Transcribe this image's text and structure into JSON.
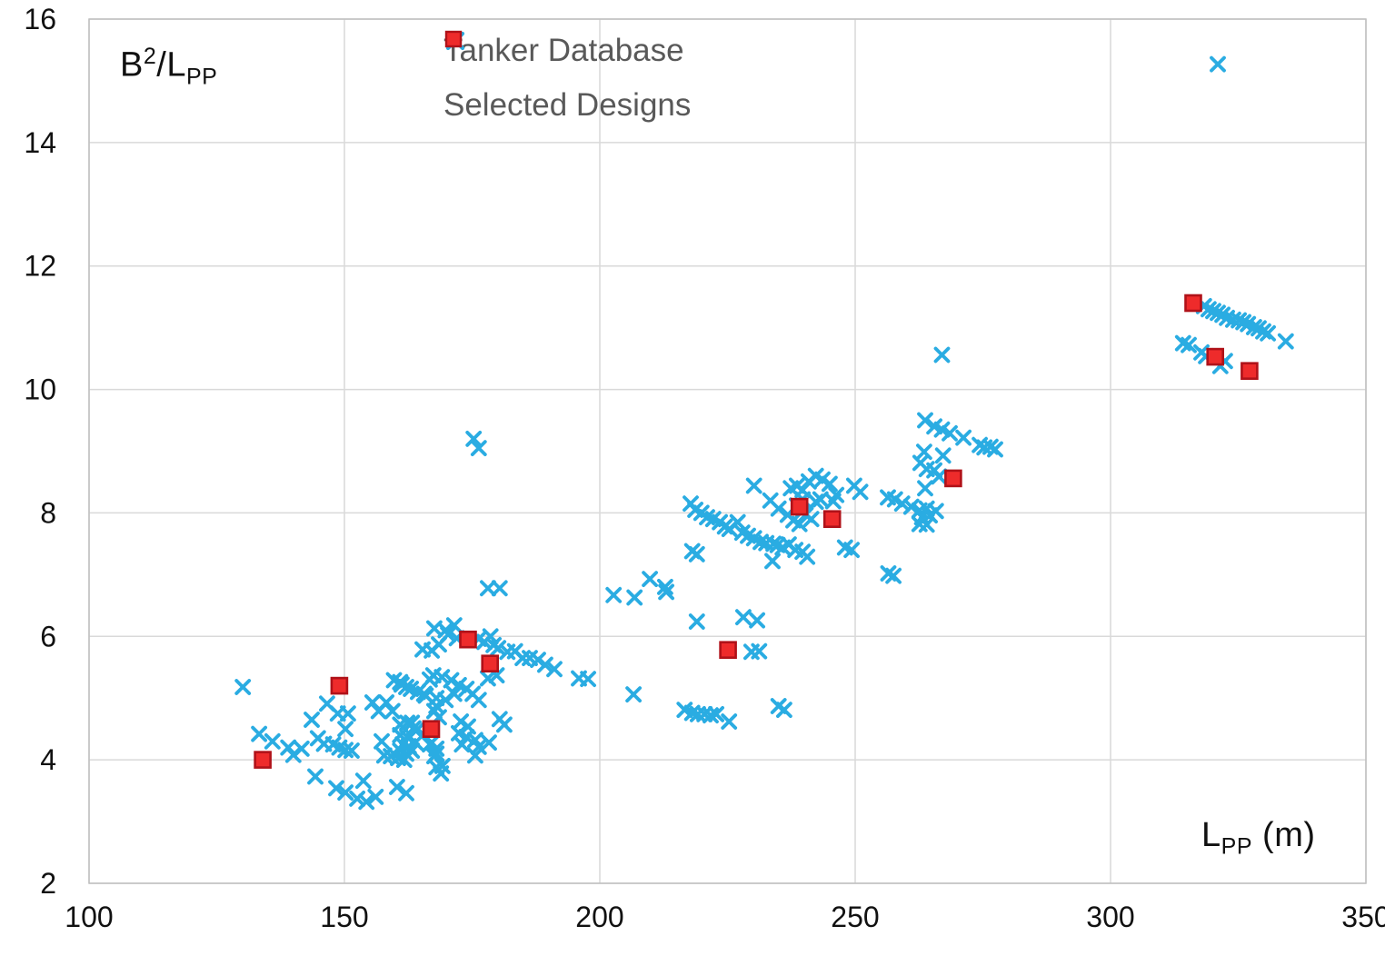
{
  "chart_data": {
    "type": "scatter",
    "title": "",
    "xlabel": "Lpp (m)",
    "ylabel": "B2/Lpp",
    "xlim": [
      100,
      350
    ],
    "ylim": [
      2,
      16
    ],
    "x_ticks": [
      100,
      150,
      200,
      250,
      300,
      350
    ],
    "y_ticks": [
      2,
      4,
      6,
      8,
      10,
      12,
      14,
      16
    ],
    "grid": true,
    "legend_position": "top-center-inside",
    "colors": {
      "tanker": "#2aace2",
      "selected_fill": "#ee2b2b",
      "selected_border": "#b01219",
      "gridline": "#d9d9d9",
      "plot_border": "#bfbfbf",
      "legend_text": "#595959",
      "tick_text": "#111111"
    },
    "y_axis_title_parts": {
      "base": "B",
      "sup": "2",
      "slash": "/L",
      "sub": "PP"
    },
    "x_axis_title_parts": {
      "base": "L",
      "sub": "PP",
      "unit": " (m)"
    },
    "series": [
      {
        "name": "Tanker Database",
        "marker": "x",
        "color": "#2aace2",
        "points": [
          [
            130.1,
            5.18
          ],
          [
            133.3,
            4.42
          ],
          [
            135.9,
            4.3
          ],
          [
            139.0,
            4.2
          ],
          [
            140.0,
            4.08
          ],
          [
            141.6,
            4.18
          ],
          [
            143.6,
            4.65
          ],
          [
            144.8,
            4.35
          ],
          [
            144.3,
            3.73
          ],
          [
            146.0,
            4.26
          ],
          [
            146.6,
            4.91
          ],
          [
            147.8,
            4.25
          ],
          [
            148.7,
            4.75
          ],
          [
            149.0,
            4.2
          ],
          [
            150.2,
            4.5
          ],
          [
            150.2,
            4.16
          ],
          [
            150.7,
            4.75
          ],
          [
            151.4,
            4.15
          ],
          [
            148.4,
            3.54
          ],
          [
            150.2,
            3.47
          ],
          [
            152.5,
            3.37
          ],
          [
            154.3,
            3.32
          ],
          [
            156.1,
            3.4
          ],
          [
            153.7,
            3.66
          ],
          [
            155.5,
            4.93
          ],
          [
            156.7,
            4.79
          ],
          [
            158.2,
            4.93
          ],
          [
            159.4,
            4.79
          ],
          [
            157.3,
            4.3
          ],
          [
            157.8,
            4.07
          ],
          [
            160.9,
            5.26
          ],
          [
            162.1,
            5.18
          ],
          [
            160.3,
            3.56
          ],
          [
            162.1,
            3.46
          ],
          [
            159.7,
            5.29
          ],
          [
            161.2,
            5.22
          ],
          [
            163.0,
            5.15
          ],
          [
            164.4,
            5.1
          ],
          [
            165.9,
            5.04
          ],
          [
            160.9,
            4.57
          ],
          [
            162.3,
            4.6
          ],
          [
            163.5,
            4.51
          ],
          [
            160.9,
            4.4
          ],
          [
            162.3,
            4.37
          ],
          [
            161.4,
            4.25
          ],
          [
            162.6,
            4.22
          ],
          [
            160.9,
            4.15
          ],
          [
            162.1,
            4.1
          ],
          [
            163.2,
            4.15
          ],
          [
            160.5,
            4.03
          ],
          [
            161.7,
            4.0
          ],
          [
            159.1,
            4.06
          ],
          [
            163.9,
            4.28
          ],
          [
            163.2,
            4.6
          ],
          [
            164.4,
            4.5
          ],
          [
            165.6,
            5.07
          ],
          [
            166.7,
            5.3
          ],
          [
            167.4,
            5.37
          ],
          [
            169.1,
            5.34
          ],
          [
            170.9,
            5.29
          ],
          [
            172.4,
            5.21
          ],
          [
            168.0,
            5.0
          ],
          [
            169.8,
            4.97
          ],
          [
            171.5,
            5.07
          ],
          [
            173.9,
            5.15
          ],
          [
            175.1,
            5.07
          ],
          [
            176.3,
            4.97
          ],
          [
            178.1,
            5.32
          ],
          [
            179.8,
            5.37
          ],
          [
            167.6,
            4.79
          ],
          [
            168.5,
            4.69
          ],
          [
            167.1,
            4.28
          ],
          [
            168.0,
            4.18
          ],
          [
            167.6,
            4.06
          ],
          [
            168.0,
            3.88
          ],
          [
            168.9,
            3.78
          ],
          [
            168.0,
            4.87
          ],
          [
            166.7,
            4.25
          ],
          [
            168.0,
            4.1
          ],
          [
            169.2,
            3.9
          ],
          [
            172.8,
            4.62
          ],
          [
            174.2,
            4.54
          ],
          [
            172.4,
            4.43
          ],
          [
            173.9,
            4.37
          ],
          [
            173.0,
            4.25
          ],
          [
            175.6,
            4.32
          ],
          [
            176.3,
            4.21
          ],
          [
            178.3,
            4.28
          ],
          [
            175.6,
            4.07
          ],
          [
            180.4,
            4.66
          ],
          [
            181.3,
            4.57
          ],
          [
            167.6,
            6.13
          ],
          [
            169.8,
            6.1
          ],
          [
            171.5,
            6.18
          ],
          [
            170.3,
            6.03
          ],
          [
            168.5,
            5.87
          ],
          [
            172.0,
            5.97
          ],
          [
            176.3,
            5.96
          ],
          [
            177.4,
            5.91
          ],
          [
            178.6,
            6.0
          ],
          [
            179.2,
            5.86
          ],
          [
            180.1,
            5.81
          ],
          [
            165.3,
            5.79
          ],
          [
            167.1,
            5.77
          ],
          [
            181.9,
            5.75
          ],
          [
            183.4,
            5.76
          ],
          [
            184.9,
            5.65
          ],
          [
            186.3,
            5.65
          ],
          [
            187.9,
            5.62
          ],
          [
            189.3,
            5.54
          ],
          [
            191.1,
            5.47
          ],
          [
            195.9,
            5.32
          ],
          [
            197.7,
            5.31
          ],
          [
            178.1,
            6.78
          ],
          [
            180.4,
            6.78
          ],
          [
            175.3,
            9.2
          ],
          [
            176.3,
            9.05
          ],
          [
            202.7,
            6.67
          ],
          [
            206.8,
            6.63
          ],
          [
            213.0,
            6.72
          ],
          [
            209.8,
            6.93
          ],
          [
            212.8,
            6.8
          ],
          [
            206.6,
            5.06
          ],
          [
            216.6,
            4.81
          ],
          [
            218.1,
            4.76
          ],
          [
            219.2,
            4.74
          ],
          [
            220.5,
            4.74
          ],
          [
            221.7,
            4.72
          ],
          [
            222.8,
            4.74
          ],
          [
            225.3,
            4.62
          ],
          [
            235.0,
            4.87
          ],
          [
            236.1,
            4.81
          ],
          [
            219.0,
            6.24
          ],
          [
            228.1,
            6.31
          ],
          [
            230.8,
            6.26
          ],
          [
            229.7,
            5.75
          ],
          [
            231.2,
            5.76
          ],
          [
            217.8,
            8.15
          ],
          [
            218.7,
            8.05
          ],
          [
            219.9,
            8.0
          ],
          [
            221.0,
            7.93
          ],
          [
            222.2,
            7.9
          ],
          [
            223.5,
            7.85
          ],
          [
            224.5,
            7.78
          ],
          [
            225.4,
            7.74
          ],
          [
            227.0,
            7.85
          ],
          [
            227.9,
            7.68
          ],
          [
            229.0,
            7.63
          ],
          [
            230.2,
            7.59
          ],
          [
            231.5,
            7.53
          ],
          [
            232.6,
            7.51
          ],
          [
            234.0,
            7.5
          ],
          [
            234.8,
            7.48
          ],
          [
            235.8,
            7.44
          ],
          [
            237.0,
            7.49
          ],
          [
            238.3,
            7.4
          ],
          [
            239.7,
            7.37
          ],
          [
            240.6,
            7.29
          ],
          [
            233.8,
            7.22
          ],
          [
            218.1,
            7.38
          ],
          [
            219.0,
            7.33
          ],
          [
            230.2,
            8.44
          ],
          [
            233.4,
            8.2
          ],
          [
            235.0,
            8.07
          ],
          [
            248.0,
            7.44
          ],
          [
            249.3,
            7.4
          ],
          [
            237.4,
            8.4
          ],
          [
            238.6,
            8.44
          ],
          [
            239.7,
            8.37
          ],
          [
            240.9,
            8.51
          ],
          [
            242.3,
            8.6
          ],
          [
            243.6,
            8.54
          ],
          [
            245.0,
            8.47
          ],
          [
            246.3,
            8.29
          ],
          [
            238.6,
            8.12
          ],
          [
            239.7,
            8.22
          ],
          [
            236.8,
            7.97
          ],
          [
            237.9,
            7.88
          ],
          [
            239.1,
            7.82
          ],
          [
            240.3,
            7.97
          ],
          [
            241.4,
            7.9
          ],
          [
            242.3,
            8.18
          ],
          [
            243.2,
            8.22
          ],
          [
            245.7,
            8.19
          ],
          [
            249.8,
            8.44
          ],
          [
            251.0,
            8.34
          ],
          [
            256.4,
            8.25
          ],
          [
            257.8,
            8.22
          ],
          [
            259.2,
            8.15
          ],
          [
            261.0,
            8.1
          ],
          [
            262.6,
            8.04
          ],
          [
            264.0,
            8.07
          ],
          [
            263.1,
            7.93
          ],
          [
            264.6,
            7.96
          ],
          [
            265.8,
            8.03
          ],
          [
            262.6,
            7.82
          ],
          [
            264.0,
            7.81
          ],
          [
            263.7,
            9.5
          ],
          [
            265.5,
            9.4
          ],
          [
            267.0,
            9.35
          ],
          [
            268.5,
            9.29
          ],
          [
            271.2,
            9.22
          ],
          [
            274.4,
            9.1
          ],
          [
            275.3,
            9.06
          ],
          [
            276.5,
            9.07
          ],
          [
            277.4,
            9.03
          ],
          [
            263.5,
            8.99
          ],
          [
            262.8,
            8.81
          ],
          [
            267.2,
            8.93
          ],
          [
            264.0,
            8.71
          ],
          [
            265.5,
            8.69
          ],
          [
            266.4,
            8.59
          ],
          [
            263.7,
            8.4
          ],
          [
            256.5,
            7.02
          ],
          [
            257.5,
            6.98
          ],
          [
            267.0,
            10.56
          ],
          [
            321.0,
            15.27
          ],
          [
            314.2,
            10.75
          ],
          [
            315.3,
            10.72
          ],
          [
            317.8,
            10.6
          ],
          [
            318.7,
            10.54
          ],
          [
            322.4,
            10.46
          ],
          [
            321.5,
            10.38
          ],
          [
            318.3,
            11.35
          ],
          [
            319.2,
            11.3
          ],
          [
            320.1,
            11.27
          ],
          [
            321.0,
            11.24
          ],
          [
            321.9,
            11.21
          ],
          [
            322.8,
            11.16
          ],
          [
            324.0,
            11.13
          ],
          [
            325.1,
            11.12
          ],
          [
            326.0,
            11.09
          ],
          [
            326.9,
            11.06
          ],
          [
            328.1,
            11.01
          ],
          [
            329.0,
            10.99
          ],
          [
            329.9,
            10.94
          ],
          [
            330.8,
            10.91
          ],
          [
            334.3,
            10.78
          ]
        ]
      },
      {
        "name": "Selected Designs",
        "marker": "square",
        "color": "#ee2b2b",
        "border": "#b01219",
        "points": [
          [
            134.0,
            4.0
          ],
          [
            149.0,
            5.2
          ],
          [
            167.0,
            4.5
          ],
          [
            174.2,
            5.95
          ],
          [
            178.5,
            5.56
          ],
          [
            225.1,
            5.78
          ],
          [
            239.1,
            8.1
          ],
          [
            245.5,
            7.9
          ],
          [
            269.2,
            8.56
          ],
          [
            316.2,
            11.4
          ],
          [
            320.5,
            10.53
          ],
          [
            327.2,
            10.3
          ]
        ]
      }
    ]
  }
}
